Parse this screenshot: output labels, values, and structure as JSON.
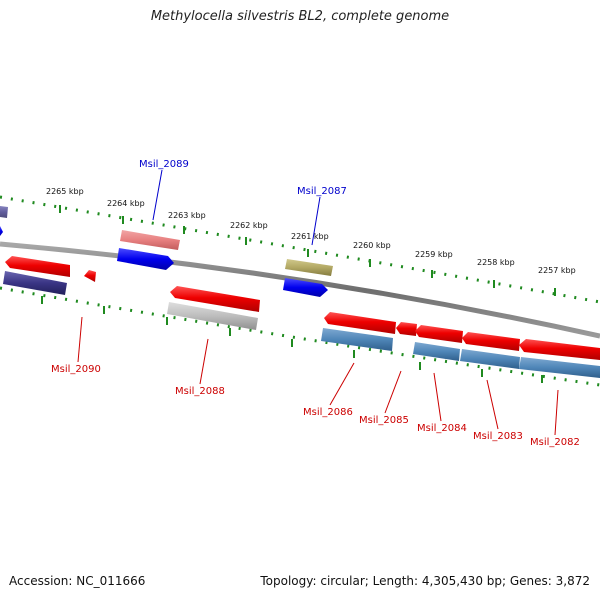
{
  "title": "Methylocella silvestris BL2, complete genome",
  "footer": {
    "accession": "Accession: NC_011666",
    "summary": "Topology: circular; Length: 4,305,430 bp; Genes: 3,872"
  },
  "scale_labels": [
    "2265 kbp",
    "2264 kbp",
    "2263 kbp",
    "2262 kbp",
    "2261 kbp",
    "2260 kbp",
    "2259 kbp",
    "2258 kbp",
    "2257 kbp"
  ],
  "gene_labels": [
    {
      "text": "Msil_2089",
      "strand": "forward",
      "color": "#0000cc"
    },
    {
      "text": "Msil_2087",
      "strand": "forward",
      "color": "#0000cc"
    },
    {
      "text": "Msil_2090",
      "strand": "reverse",
      "color": "#cc0000"
    },
    {
      "text": "Msil_2088",
      "strand": "reverse",
      "color": "#cc0000"
    },
    {
      "text": "Msil_2086",
      "strand": "reverse",
      "color": "#cc0000"
    },
    {
      "text": "Msil_2085",
      "strand": "reverse",
      "color": "#cc0000"
    },
    {
      "text": "Msil_2084",
      "strand": "reverse",
      "color": "#cc0000"
    },
    {
      "text": "Msil_2083",
      "strand": "reverse",
      "color": "#cc0000"
    },
    {
      "text": "Msil_2082",
      "strand": "reverse",
      "color": "#cc0000"
    }
  ],
  "colors": {
    "backbone": "#7a7a7a",
    "tick": "#1f8a1f",
    "cds_red": "#ee0000",
    "blue": "#0000ee",
    "steel": "#4f86b8",
    "navy": "#3a3585",
    "pink": "#e88080",
    "olive": "#b2a864",
    "gray": "#bdbdbd"
  }
}
